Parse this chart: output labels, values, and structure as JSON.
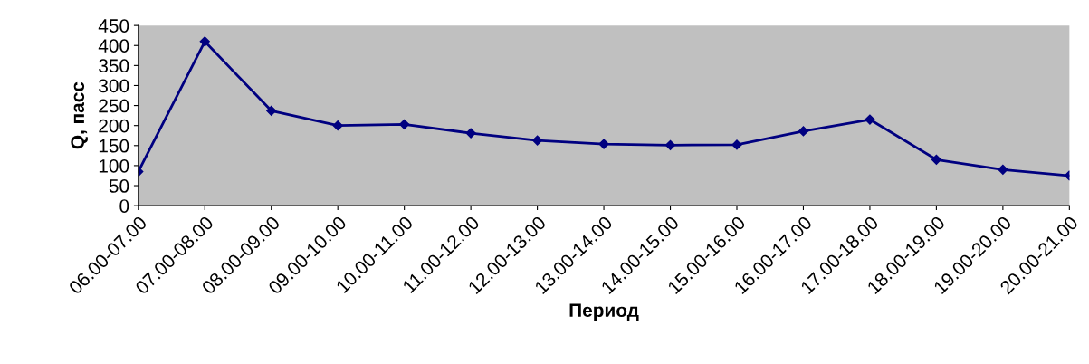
{
  "chart_data": {
    "type": "line",
    "xlabel": "Период",
    "ylabel": "Q, пасс",
    "categories": [
      "06.00-07.00",
      "07.00-08.00",
      "08.00-09.00",
      "09.00-10.00",
      "10.00-11.00",
      "11.00-12.00",
      "12.00-13.00",
      "13.00-14.00",
      "14.00-15.00",
      "15.00-16.00",
      "16.00-17.00",
      "17.00-18.00",
      "18.00-19.00",
      "19.00-20.00",
      "20.00-21.00"
    ],
    "series": [
      {
        "color": "#000080",
        "values": [
          85,
          410,
          237,
          200,
          203,
          181,
          163,
          154,
          151,
          152,
          186,
          215,
          115,
          90,
          75
        ]
      }
    ],
    "ylim": [
      0,
      450
    ],
    "yticks": [
      0,
      50,
      100,
      150,
      200,
      250,
      300,
      350,
      400,
      450
    ],
    "grid": false,
    "legend": false,
    "marker": "diamond",
    "line_style": "solid"
  }
}
